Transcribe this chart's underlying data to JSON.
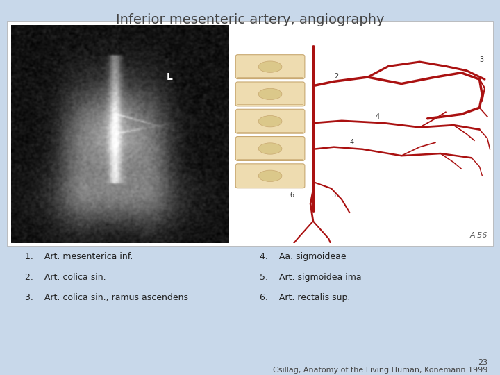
{
  "title": "Inferior mesenteric artery, angiography",
  "title_fontsize": 14,
  "title_color": "#444444",
  "background_color": "#c8d8ea",
  "left_labels": [
    "1.    Art. mesenterica inf.",
    "2.    Art. colica sin.",
    "3.    Art. colica sin., ramus ascendens"
  ],
  "right_labels": [
    "4.    Aa. sigmoideae",
    "5.    Art. sigmoidea ima",
    "6.    Art. rectalis sup."
  ],
  "footnote_number": "23",
  "footnote_text": "Csillag, Anatomy of the Living Human, Könemann 1999",
  "label_fontsize": 9,
  "footnote_fontsize": 8,
  "artery_color": "#aa1111",
  "vert_color": "#eedcb0",
  "vert_edge": "#c8a870"
}
